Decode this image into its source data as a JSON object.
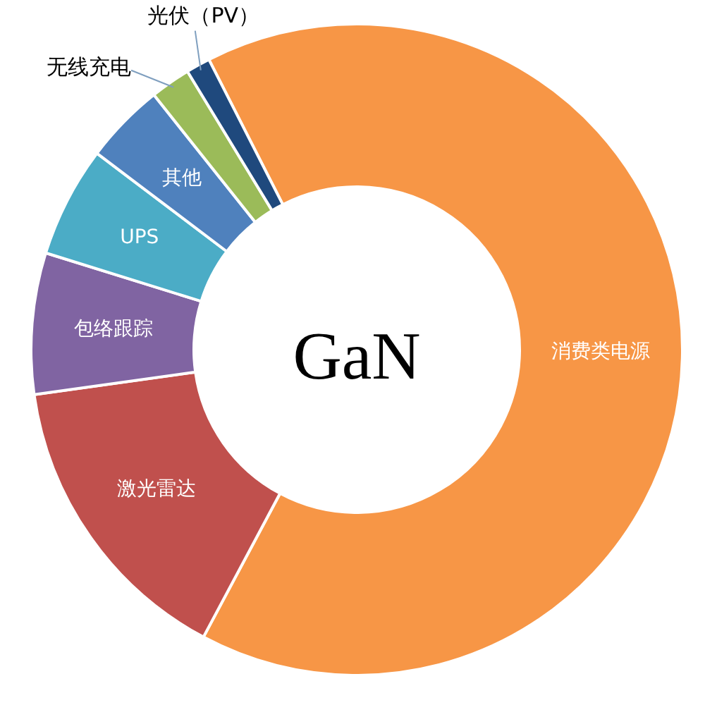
{
  "chart_data": {
    "type": "donut",
    "title": "GaN",
    "categories": [
      "消费类电源",
      "激光雷达",
      "包络跟踪",
      "UPS",
      "其他",
      "无线充电",
      "光伏（PV）"
    ],
    "values": [
      65.3,
      15,
      7,
      5.5,
      4,
      2,
      1.2
    ],
    "colors": [
      "#f79646",
      "#c0504d",
      "#8064a2",
      "#4bacc6",
      "#4f81bd",
      "#9bbb59",
      "#1f497d"
    ],
    "legend": false
  }
}
